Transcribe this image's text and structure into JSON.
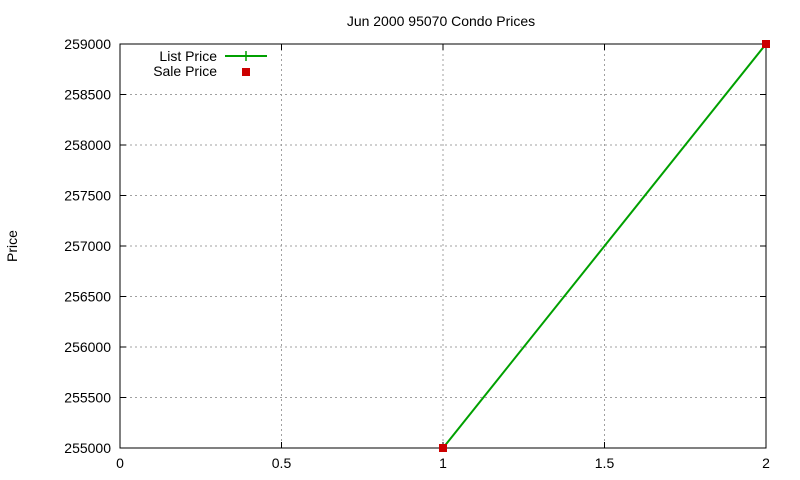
{
  "chart_data": {
    "type": "line",
    "title": "Jun 2000 95070 Condo Prices",
    "xlabel": "",
    "ylabel": "Price",
    "xlim": [
      0,
      2
    ],
    "ylim": [
      255000,
      259000
    ],
    "x_ticks": [
      "0",
      "0.5",
      "1",
      "1.5",
      "2"
    ],
    "y_ticks": [
      "255000",
      "255500",
      "256000",
      "256500",
      "257000",
      "257500",
      "258000",
      "258500",
      "259000"
    ],
    "grid": true,
    "legend_position": "top-left",
    "series": [
      {
        "name": "List Price",
        "style": "line+cross",
        "color": "#00a000",
        "x": [
          1,
          2
        ],
        "values": [
          255000,
          259000
        ]
      },
      {
        "name": "Sale Price",
        "style": "square-markers",
        "color": "#cc0000",
        "x": [
          1,
          2
        ],
        "values": [
          255000,
          259000
        ]
      }
    ]
  }
}
